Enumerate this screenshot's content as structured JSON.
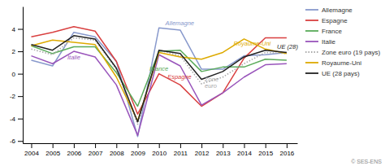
{
  "chart_data": {
    "type": "line",
    "x": [
      2004,
      2005,
      2006,
      2007,
      2008,
      2009,
      2010,
      2011,
      2012,
      2013,
      2014,
      2015,
      2016
    ],
    "series": [
      {
        "name": "Allemagne",
        "color": "#8899cc",
        "line_style": "solid",
        "values": [
          1.2,
          0.7,
          3.7,
          3.3,
          1.1,
          -5.6,
          4.1,
          3.9,
          0.4,
          0.4,
          1.6,
          1.7,
          1.9
        ]
      },
      {
        "name": "Espagne",
        "color": "#d94040",
        "line_style": "solid",
        "values": [
          3.3,
          3.7,
          4.2,
          3.8,
          1.1,
          -3.6,
          0.0,
          -1.0,
          -2.9,
          -1.7,
          1.4,
          3.2,
          3.2
        ]
      },
      {
        "name": "France",
        "color": "#5aab5a",
        "line_style": "solid",
        "values": [
          2.5,
          1.8,
          2.4,
          2.4,
          0.1,
          -2.9,
          2.0,
          2.1,
          0.2,
          0.6,
          0.6,
          1.3,
          1.2
        ]
      },
      {
        "name": "Italie",
        "color": "#9955bb",
        "line_style": "solid",
        "values": [
          1.6,
          0.9,
          2.0,
          1.5,
          -1.0,
          -5.5,
          1.7,
          0.7,
          -2.8,
          -1.7,
          -0.3,
          0.8,
          0.9
        ]
      },
      {
        "name": "Zone euro (19 pays)",
        "color": "#aaaaaa",
        "line_style": "dotted",
        "values": [
          2.2,
          1.7,
          3.2,
          3.0,
          0.4,
          -4.5,
          2.1,
          1.6,
          -0.9,
          -0.3,
          0.9,
          1.9,
          1.8
        ]
      },
      {
        "name": "Royaume-Uni",
        "color": "#ddaa00",
        "line_style": "solid",
        "values": [
          2.5,
          3.0,
          2.8,
          2.6,
          -0.3,
          -4.2,
          1.9,
          1.5,
          1.3,
          1.9,
          3.1,
          2.2,
          1.8
        ]
      },
      {
        "name": "UE (28 pays)",
        "color": "#222222",
        "line_style": "solid",
        "values": [
          2.6,
          2.1,
          3.4,
          3.1,
          0.5,
          -4.3,
          2.1,
          1.8,
          -0.5,
          0.2,
          1.5,
          2.1,
          1.9
        ]
      }
    ],
    "annotations": [
      {
        "text": "Allemagne",
        "x": 2010.3,
        "y": 4.15,
        "color": "#8899cc"
      },
      {
        "text": "Italie",
        "x": 2005.7,
        "y": 1.1,
        "color": "#9955bb"
      },
      {
        "text": "France",
        "x": 2009.55,
        "y": 0.1,
        "color": "#5aab5a"
      },
      {
        "text": "Espagne",
        "x": 2010.4,
        "y": -0.6,
        "color": "#d94040"
      },
      {
        "text": "Zone\neuro",
        "x": 2012.15,
        "y": -1.4,
        "color": "#aaaaaa"
      },
      {
        "text": "Royaume-Uni",
        "x": 2013.5,
        "y": 2.4,
        "color": "#ddaa00"
      },
      {
        "text": "UE (28)",
        "x": 2015.55,
        "y": 2.1,
        "color": "#222222"
      },
      {
        "text": "© SES-ENS"
      }
    ],
    "xlim": [
      2003.6,
      2016.5
    ],
    "xticks": [
      2004,
      2005,
      2006,
      2007,
      2008,
      2009,
      2010,
      2011,
      2012,
      2013,
      2014,
      2015,
      2016
    ],
    "ylim": [
      -6.2,
      6.0
    ],
    "yticks": [
      -6,
      -4,
      -2,
      0,
      2,
      4
    ],
    "grid": false,
    "legend": "right"
  }
}
